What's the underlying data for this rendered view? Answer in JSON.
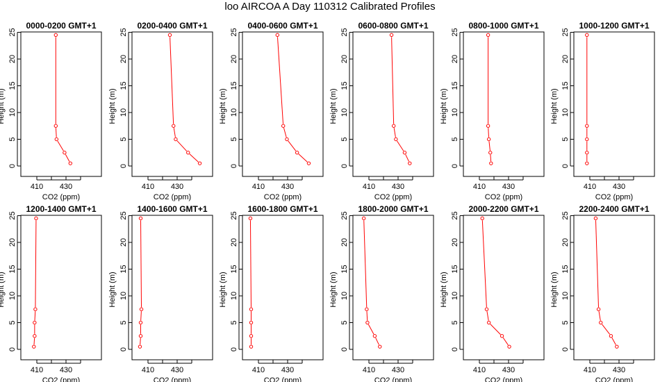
{
  "figure": {
    "title": "loo AIRCOA A  Day 110312  Calibrated Profiles"
  },
  "colors": {
    "series": "#ff0000",
    "axis": "#000000"
  },
  "chart_data": {
    "type": "line",
    "shared": {
      "xlabel": "CO2 (ppm)",
      "ylabel": "Height (m)",
      "xlim": [
        400,
        450
      ],
      "ylim": [
        0,
        25
      ],
      "x_ticks": [
        410,
        420,
        430,
        440
      ],
      "x_tick_labels": [
        "410",
        "",
        "430",
        ""
      ],
      "y_ticks": [
        0,
        5,
        10,
        15,
        20,
        25
      ],
      "heights": [
        0.5,
        2.5,
        5,
        7.5,
        24.5
      ],
      "grid": false,
      "legend": "none"
    },
    "panels": [
      {
        "title": "0000-0200 GMT+1",
        "co2": [
          433.0,
          429.0,
          423.5,
          423.0,
          423.0
        ]
      },
      {
        "title": "0200-0400 GMT+1",
        "co2": [
          445.5,
          437.5,
          429.0,
          427.5,
          425.0
        ]
      },
      {
        "title": "0400-0600 GMT+1",
        "co2": [
          444.5,
          436.5,
          429.5,
          427.0,
          423.0
        ]
      },
      {
        "title": "0600-0800 GMT+1",
        "co2": [
          438.0,
          434.5,
          428.5,
          427.0,
          425.5
        ]
      },
      {
        "title": "0800-1000 GMT+1",
        "co2": [
          418.0,
          417.5,
          416.5,
          416.0,
          416.0
        ]
      },
      {
        "title": "1000-1200 GMT+1",
        "co2": [
          408.0,
          408.0,
          408.0,
          408.0,
          408.0
        ]
      },
      {
        "title": "1200-1400 GMT+1",
        "co2": [
          408.0,
          408.5,
          408.5,
          409.0,
          409.5
        ]
      },
      {
        "title": "1400-1600 GMT+1",
        "co2": [
          404.5,
          405.0,
          405.0,
          405.5,
          405.0
        ]
      },
      {
        "title": "1600-1800 GMT+1",
        "co2": [
          405.0,
          405.0,
          405.0,
          405.0,
          404.5
        ]
      },
      {
        "title": "1800-2000 GMT+1",
        "co2": [
          417.5,
          414.0,
          409.0,
          408.5,
          406.5
        ]
      },
      {
        "title": "2000-2200 GMT+1",
        "co2": [
          430.5,
          425.5,
          416.5,
          415.0,
          412.0
        ]
      },
      {
        "title": "2200-2400 GMT+1",
        "co2": [
          428.5,
          424.5,
          417.5,
          416.0,
          414.0
        ]
      }
    ]
  }
}
